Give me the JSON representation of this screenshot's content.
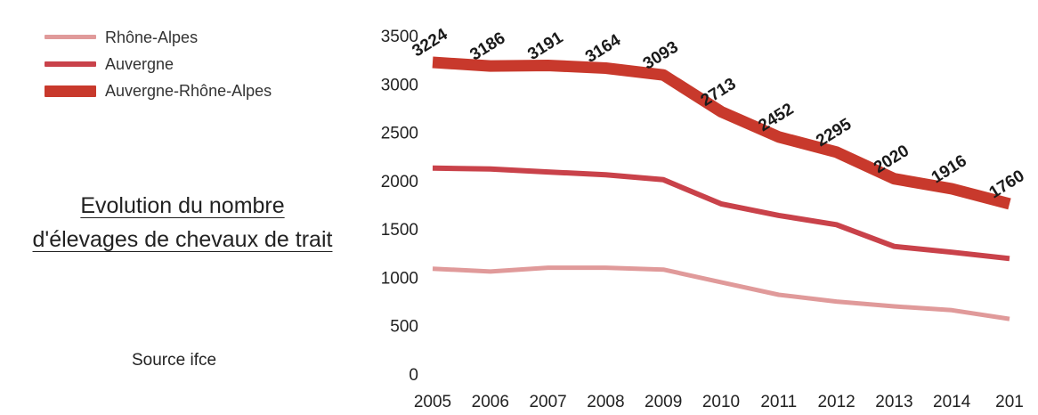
{
  "chart_data": {
    "type": "line",
    "title_lines": [
      "Evolution du nombre",
      "d'élevages de chevaux de trait"
    ],
    "source": "Source ifce",
    "x": [
      "2005",
      "2006",
      "2007",
      "2008",
      "2009",
      "2010",
      "2011",
      "2012",
      "2013",
      "2014",
      "201"
    ],
    "ylim": [
      0,
      3500
    ],
    "yticks": [
      "0",
      "500",
      "1000",
      "1500",
      "2000",
      "2500",
      "3000",
      "3500"
    ],
    "grid": false,
    "legend_position": "top-left",
    "series": [
      {
        "name": "Rhône-Alpes",
        "color": "#e09a9a",
        "values": [
          1090,
          1060,
          1100,
          1100,
          1080,
          950,
          820,
          750,
          700,
          660,
          570
        ]
      },
      {
        "name": "Auvergne",
        "color": "#c9424a",
        "values": [
          2130,
          2120,
          2090,
          2060,
          2010,
          1760,
          1640,
          1545,
          1320,
          1260,
          1195
        ]
      },
      {
        "name": "Auvergne-Rhône-Alpes",
        "color": "#c8392c",
        "values": [
          3224,
          3186,
          3191,
          3164,
          3093,
          2713,
          2452,
          2295,
          2020,
          1916,
          1760
        ],
        "data_labels": [
          "3224",
          "3186",
          "3191",
          "3164",
          "3093",
          "2713",
          "2452",
          "2295",
          "2020",
          "1916",
          "1760"
        ]
      }
    ]
  }
}
